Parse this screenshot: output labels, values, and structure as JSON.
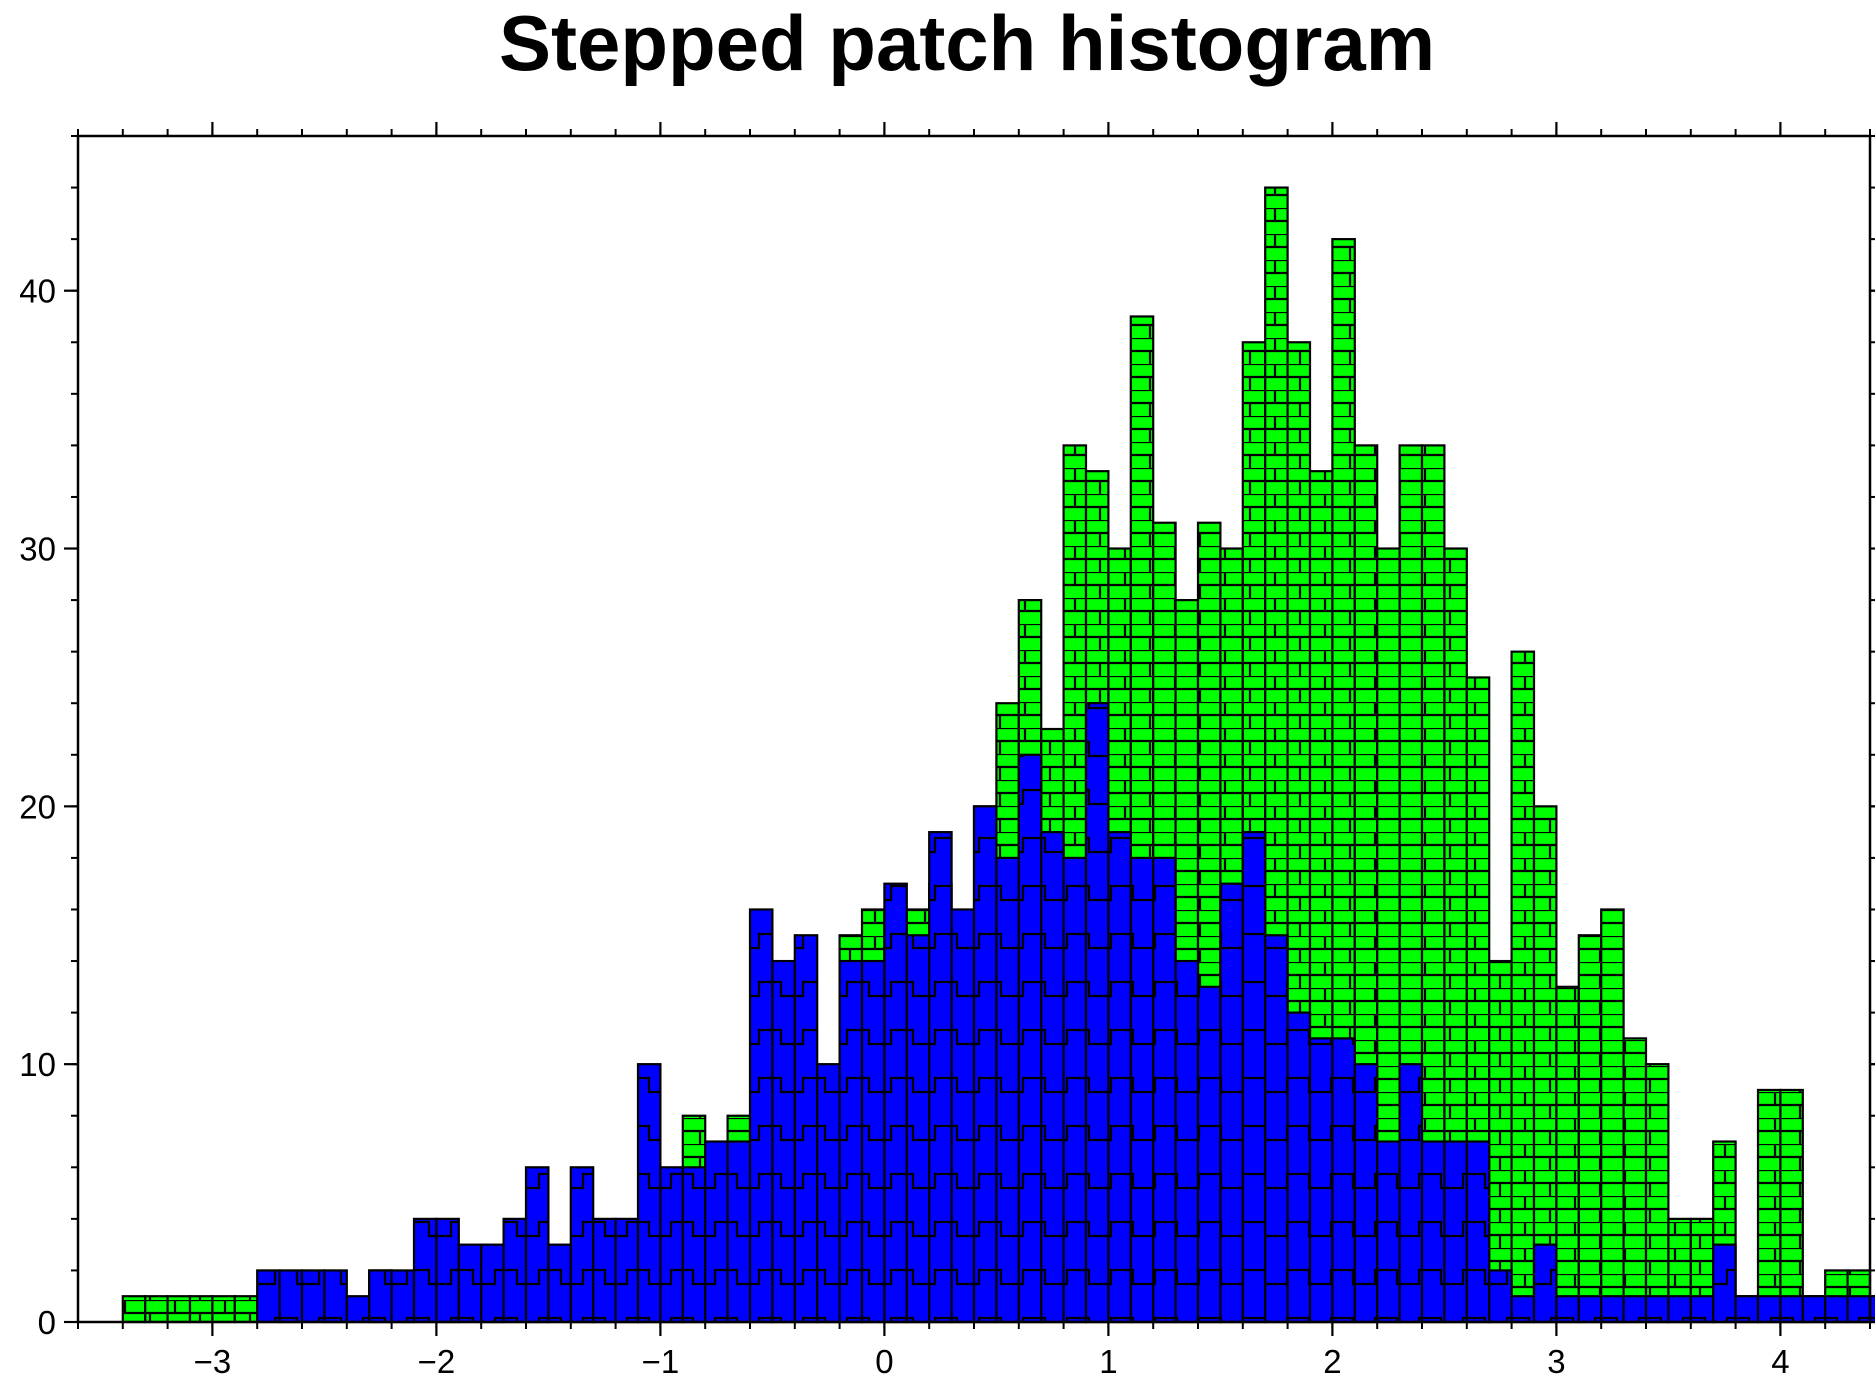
{
  "chart_data": {
    "type": "bar",
    "title": "Stepped patch histogram",
    "xlabel": "",
    "ylabel": "",
    "xlim": [
      -3.6,
      4.4
    ],
    "ylim": [
      0,
      46
    ],
    "bin_width": 0.1,
    "x_ticks": [
      -3,
      -2,
      -1,
      0,
      1,
      2,
      3,
      4
    ],
    "x_tick_labels": [
      "−3",
      "−2",
      "−1",
      "0",
      "1",
      "2",
      "3",
      "4"
    ],
    "y_ticks": [
      0,
      10,
      20,
      30,
      40
    ],
    "y_tick_labels": [
      "0",
      "10",
      "20",
      "30",
      "40"
    ],
    "grid": false,
    "series": [
      {
        "color": "#00ff00",
        "pattern": "brick",
        "x_start": -3.4,
        "values": [
          1,
          1,
          1,
          1,
          1,
          1,
          0,
          1,
          0,
          1,
          0,
          2,
          1,
          0,
          1,
          0,
          1,
          0,
          4,
          0,
          1,
          1,
          1,
          3,
          4,
          8,
          4,
          8,
          4,
          9,
          9,
          9,
          15,
          16,
          16,
          16,
          17,
          14,
          20,
          24,
          28,
          23,
          34,
          33,
          30,
          39,
          31,
          28,
          31,
          30,
          38,
          44,
          38,
          33,
          42,
          34,
          30,
          34,
          34,
          30,
          25,
          14,
          26,
          20,
          13,
          15,
          16,
          11,
          10,
          4,
          4,
          7,
          1,
          9,
          9,
          1,
          2,
          2,
          1,
          2,
          1,
          1,
          1,
          1,
          1,
          1,
          1,
          1,
          1,
          1
        ]
      },
      {
        "color": "#0000ff",
        "pattern": "square-wave",
        "x_start": -2.8,
        "values": [
          2,
          2,
          2,
          2,
          1,
          2,
          2,
          4,
          4,
          3,
          3,
          4,
          6,
          3,
          6,
          4,
          4,
          10,
          6,
          6,
          7,
          7,
          16,
          14,
          15,
          10,
          14,
          14,
          17,
          15,
          19,
          16,
          20,
          18,
          22,
          19,
          18,
          24,
          19,
          18,
          18,
          14,
          13,
          17,
          19,
          15,
          12,
          11,
          11,
          10,
          7,
          10,
          7,
          7,
          7,
          2,
          1,
          3,
          1,
          1,
          1,
          1,
          1,
          1,
          1,
          3,
          1,
          1,
          1,
          1,
          1,
          1,
          1,
          1,
          1,
          1,
          1,
          1,
          1,
          1
        ]
      }
    ]
  }
}
